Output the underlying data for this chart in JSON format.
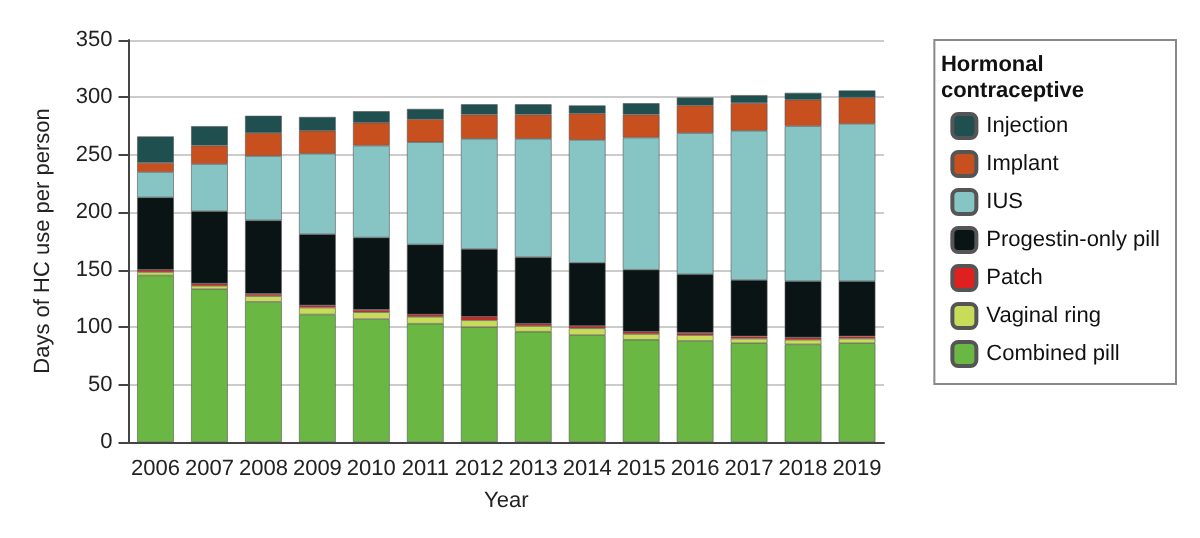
{
  "chart_data": {
    "type": "bar",
    "stacked": true,
    "xlabel": "Year",
    "ylabel": "Days of HC use per person",
    "legend_title": "Hormonal\ncontraceptive",
    "legend": "right",
    "categories": [
      "2006",
      "2007",
      "2008",
      "2009",
      "2010",
      "2011",
      "2012",
      "2013",
      "2014",
      "2015",
      "2016",
      "2017",
      "2018",
      "2019"
    ],
    "series": [
      {
        "name": "Combined pill",
        "color": "#6ab843",
        "values": [
          145,
          133,
          122,
          111,
          107,
          103,
          100,
          96,
          93,
          89,
          88,
          86,
          85,
          86
        ]
      },
      {
        "name": "Vaginal ring",
        "color": "#c8dc5a",
        "values": [
          3,
          3,
          5,
          6,
          6,
          6,
          6,
          5,
          6,
          5,
          5,
          4,
          4,
          4
        ]
      },
      {
        "name": "Patch",
        "color": "#e02020",
        "values": [
          2,
          2,
          2,
          2,
          2,
          2,
          3,
          2,
          2,
          2,
          2,
          2,
          2,
          2
        ]
      },
      {
        "name": "Progestin-only pill",
        "color": "#0a1414",
        "values": [
          63,
          63,
          64,
          62,
          63,
          61,
          59,
          58,
          55,
          54,
          51,
          49,
          49,
          48
        ]
      },
      {
        "name": "IUS",
        "color": "#87c5c5",
        "values": [
          22,
          41,
          56,
          70,
          80,
          89,
          96,
          103,
          107,
          115,
          123,
          130,
          135,
          137
        ]
      },
      {
        "name": "Implant",
        "color": "#c8501e",
        "values": [
          8,
          16,
          20,
          20,
          20,
          20,
          21,
          21,
          23,
          20,
          24,
          24,
          23,
          23
        ]
      },
      {
        "name": "Injection",
        "color": "#1f4f4f",
        "values": [
          23,
          17,
          15,
          12,
          10,
          9,
          9,
          9,
          7,
          10,
          7,
          7,
          6,
          6
        ]
      }
    ],
    "ylim": [
      0,
      350
    ],
    "yticks": [
      0,
      50,
      100,
      150,
      200,
      250,
      300,
      350
    ],
    "grid": "y"
  }
}
